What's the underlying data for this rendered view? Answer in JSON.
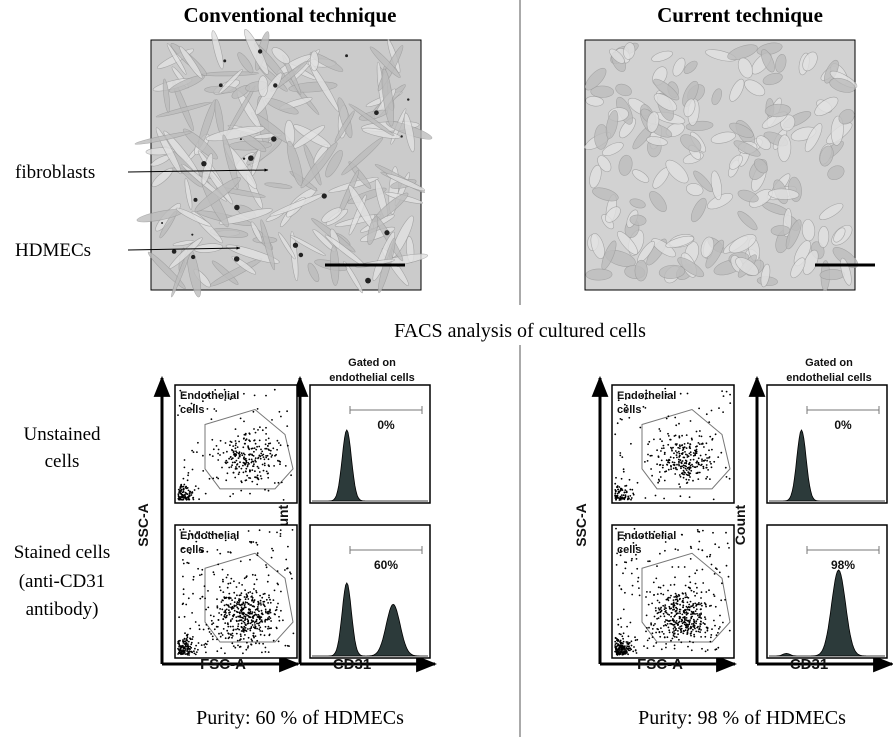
{
  "columns": [
    {
      "title": "Conventional technique",
      "image_labels": [
        "fibroblasts",
        "HDMECs"
      ],
      "percentages": [
        "0%",
        "60%"
      ],
      "purity": "Purity: 60 % of HDMECs"
    },
    {
      "title": "Current technique",
      "percentages": [
        "0%",
        "98%"
      ],
      "purity": "Purity: 98 % of HDMECs"
    }
  ],
  "facs_title": "FACS analysis of cultured cells",
  "row_labels": [
    [
      "Unstained",
      "cells"
    ],
    [
      "Stained cells",
      "(anti-CD31",
      "antibody)"
    ]
  ],
  "plot_labels": {
    "gate": [
      "Endothelial",
      "cells"
    ],
    "gated_on": [
      "Gated on",
      "endothelial cells"
    ],
    "ssc": "SSC-A",
    "fsc": "FSC-A",
    "count": "Count",
    "cd31": "CD31"
  }
}
